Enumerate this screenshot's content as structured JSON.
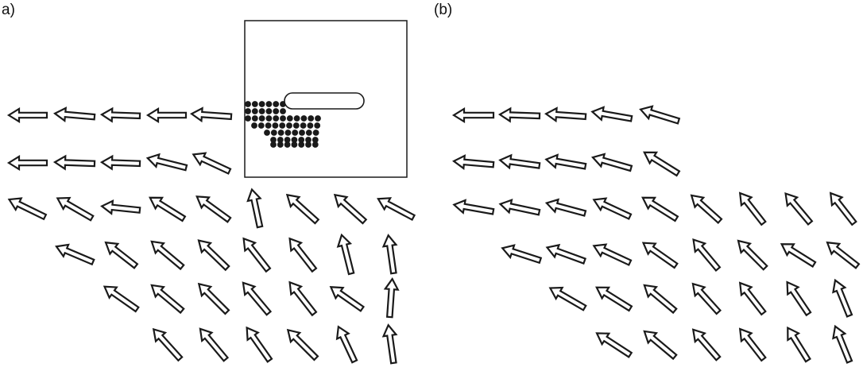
{
  "panels": [
    {
      "label": "a)"
    },
    {
      "label": "(b)"
    }
  ],
  "colors": {
    "stroke": "#1a1a1a",
    "background": "#ffffff"
  }
}
